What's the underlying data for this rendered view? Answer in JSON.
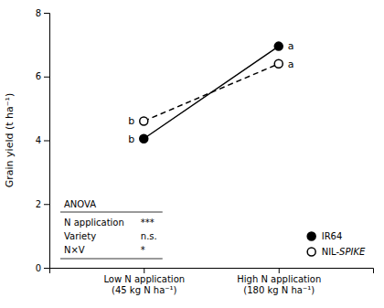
{
  "chart_data": {
    "type": "line",
    "categories": [
      "Low N application\n(45 kg N ha⁻¹)",
      "High N application\n(180 kg N ha⁻¹)"
    ],
    "series": [
      {
        "name": "IR64",
        "color": "#000000",
        "marker": "filled-circle",
        "line_style": "solid",
        "values": [
          4.05,
          6.95
        ],
        "letters": [
          "b",
          "a"
        ]
      },
      {
        "name": "NIL-SPIKE",
        "color": "#000000",
        "marker": "open-circle",
        "line_style": "dashed",
        "values": [
          4.6,
          6.4
        ],
        "letters": [
          "b",
          "a"
        ]
      }
    ],
    "ylabel": "Grain yield (t ha⁻¹)",
    "ylim": [
      0,
      8
    ],
    "yticks": [
      0,
      2,
      4,
      6,
      8
    ],
    "grid": false,
    "legend": "lower right",
    "anova": {
      "title": "ANOVA",
      "rows": [
        {
          "term": "N application",
          "significance": "***"
        },
        {
          "term": "Variety",
          "significance": "n.s."
        },
        {
          "term": "N×V",
          "significance": "*"
        }
      ]
    }
  }
}
